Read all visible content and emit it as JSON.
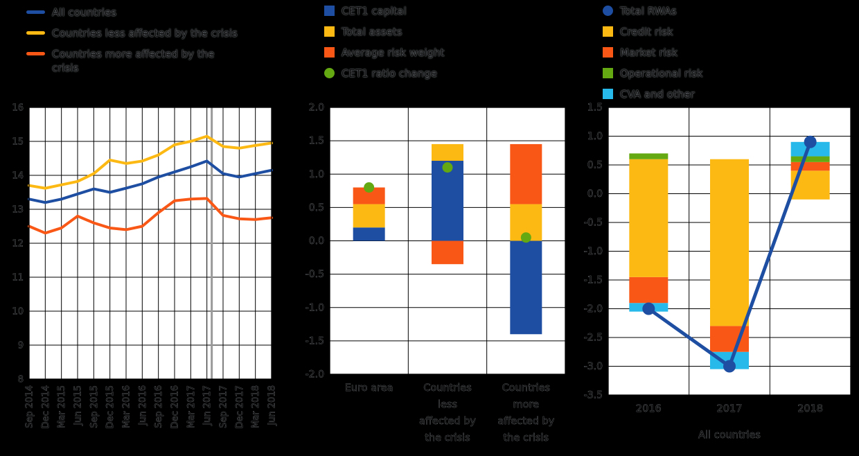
{
  "page": {
    "background": "#000000"
  },
  "colors": {
    "blue": "#1e4ea1",
    "yellow": "#fdb913",
    "orange": "#f95716",
    "green": "#64a812",
    "light_blue": "#27b9e9",
    "ref_line": "#999999",
    "grid": "#000000",
    "plot_bg": "#ffffff"
  },
  "chart_data": [
    {
      "type": "line",
      "ylim": [
        8,
        16
      ],
      "ystep": 1,
      "ref_line_index": 11.3,
      "legend": [
        {
          "label": "All countries",
          "color": "blue",
          "shape": "line"
        },
        {
          "label": "Countries less affected by the crisis",
          "color": "yellow",
          "shape": "line"
        },
        {
          "label": "Countries more affected by the\ncrisis",
          "color": "orange",
          "shape": "line"
        }
      ],
      "categories": [
        "Sep 2014",
        "Dec 2014",
        "Mar 2015",
        "Jun 2015",
        "Sep 2015",
        "Dec 2015",
        "Mar 2016",
        "Jun 2016",
        "Sep 2016",
        "Dec 2016",
        "Mar 2017",
        "Jun 2017",
        "Sep 2017",
        "Dec 2017",
        "Mar 2018",
        "Jun 2018"
      ],
      "series": [
        {
          "name": "All countries",
          "color": "blue",
          "values": [
            13.3,
            13.2,
            13.3,
            13.45,
            13.6,
            13.5,
            13.62,
            13.75,
            13.95,
            14.1,
            14.25,
            14.42,
            14.05,
            13.95,
            14.05,
            14.15
          ]
        },
        {
          "name": "Countries less affected by the crisis",
          "color": "yellow",
          "values": [
            13.7,
            13.62,
            13.72,
            13.82,
            14.05,
            14.45,
            14.35,
            14.42,
            14.6,
            14.9,
            15.0,
            15.15,
            14.85,
            14.8,
            14.88,
            14.95
          ]
        },
        {
          "name": "Countries more affected by the crisis",
          "color": "orange",
          "values": [
            12.5,
            12.3,
            12.45,
            12.8,
            12.6,
            12.45,
            12.4,
            12.5,
            12.9,
            13.25,
            13.3,
            13.32,
            12.82,
            12.72,
            12.7,
            12.75
          ]
        }
      ]
    },
    {
      "type": "stacked_bar_with_dots",
      "ylim": [
        -2,
        2
      ],
      "ystep": 0.5,
      "dot_series": "CET1 ratio change",
      "dot_color": "green",
      "legend": [
        {
          "label": "CET1 capital",
          "color": "blue",
          "shape": "square"
        },
        {
          "label": "Total assets",
          "color": "yellow",
          "shape": "square"
        },
        {
          "label": "Average risk weight",
          "color": "orange",
          "shape": "square"
        },
        {
          "label": "CET1 ratio change",
          "color": "green",
          "shape": "circle"
        }
      ],
      "categories": [
        [
          "Euro area"
        ],
        [
          "Countries",
          "less",
          "affected by",
          "the crisis"
        ],
        [
          "Countries",
          "more",
          "affected by",
          "the crisis"
        ]
      ],
      "bars": [
        {
          "label": "Euro area",
          "segments": [
            {
              "name": "CET1 capital",
              "color": "blue",
              "from": 0,
              "to": 0.2
            },
            {
              "name": "Total assets",
              "color": "yellow",
              "from": 0.2,
              "to": 0.55
            },
            {
              "name": "Average risk weight",
              "color": "orange",
              "from": 0.55,
              "to": 0.8
            }
          ],
          "dot": 0.8
        },
        {
          "label": "Countries less affected by the crisis",
          "segments": [
            {
              "name": "CET1 capital",
              "color": "blue",
              "from": 0,
              "to": 1.2
            },
            {
              "name": "Total assets",
              "color": "yellow",
              "from": 1.2,
              "to": 1.45
            },
            {
              "name": "Average risk weight",
              "color": "orange",
              "from": -0.35,
              "to": 0
            }
          ],
          "dot": 1.1
        },
        {
          "label": "Countries more affected by the crisis",
          "segments": [
            {
              "name": "CET1 capital",
              "color": "blue",
              "from": -1.4,
              "to": 0
            },
            {
              "name": "Total assets",
              "color": "yellow",
              "from": 0,
              "to": 0.55
            },
            {
              "name": "Average risk weight",
              "color": "orange",
              "from": 0.55,
              "to": 1.45
            }
          ],
          "dot": 0.05
        }
      ]
    },
    {
      "type": "stacked_bar_with_line",
      "ylim": [
        -3.5,
        1.5
      ],
      "ystep": 0.5,
      "xlabel": "All countries",
      "connect_dots": true,
      "dot_series": "Total RWAs",
      "dot_color": "blue",
      "legend": [
        {
          "label": "Total RWAs",
          "color": "blue",
          "shape": "circle"
        },
        {
          "label": "Credit risk",
          "color": "yellow",
          "shape": "square"
        },
        {
          "label": "Market risk",
          "color": "orange",
          "shape": "square"
        },
        {
          "label": "Operational risk",
          "color": "green",
          "shape": "square"
        },
        {
          "label": "CVA and other",
          "color": "light_blue",
          "shape": "square"
        }
      ],
      "categories": [
        [
          "2016"
        ],
        [
          "2017"
        ],
        [
          "2018"
        ]
      ],
      "bars": [
        {
          "label": "2016",
          "segments": [
            {
              "name": "CVA and other",
              "color": "light_blue",
              "from": -2.05,
              "to": -1.9
            },
            {
              "name": "Market risk",
              "color": "orange",
              "from": -1.9,
              "to": -1.45
            },
            {
              "name": "Credit risk",
              "color": "yellow",
              "from": -1.45,
              "to": 0.6
            },
            {
              "name": "Operational risk",
              "color": "green",
              "from": 0.6,
              "to": 0.7
            }
          ],
          "dot": -2.0
        },
        {
          "label": "2017",
          "segments": [
            {
              "name": "CVA and other",
              "color": "light_blue",
              "from": -3.05,
              "to": -2.75
            },
            {
              "name": "Market risk",
              "color": "orange",
              "from": -2.75,
              "to": -2.3
            },
            {
              "name": "Credit risk",
              "color": "yellow",
              "from": -2.3,
              "to": 0.6
            }
          ],
          "dot": -3.0
        },
        {
          "label": "2018",
          "segments": [
            {
              "name": "Credit risk",
              "color": "yellow",
              "from": -0.1,
              "to": 0.4
            },
            {
              "name": "Market risk",
              "color": "orange",
              "from": 0.4,
              "to": 0.55
            },
            {
              "name": "Operational risk",
              "color": "green",
              "from": 0.55,
              "to": 0.65
            },
            {
              "name": "CVA and other",
              "color": "light_blue",
              "from": 0.65,
              "to": 0.9
            }
          ],
          "dot": 0.9
        }
      ]
    }
  ]
}
